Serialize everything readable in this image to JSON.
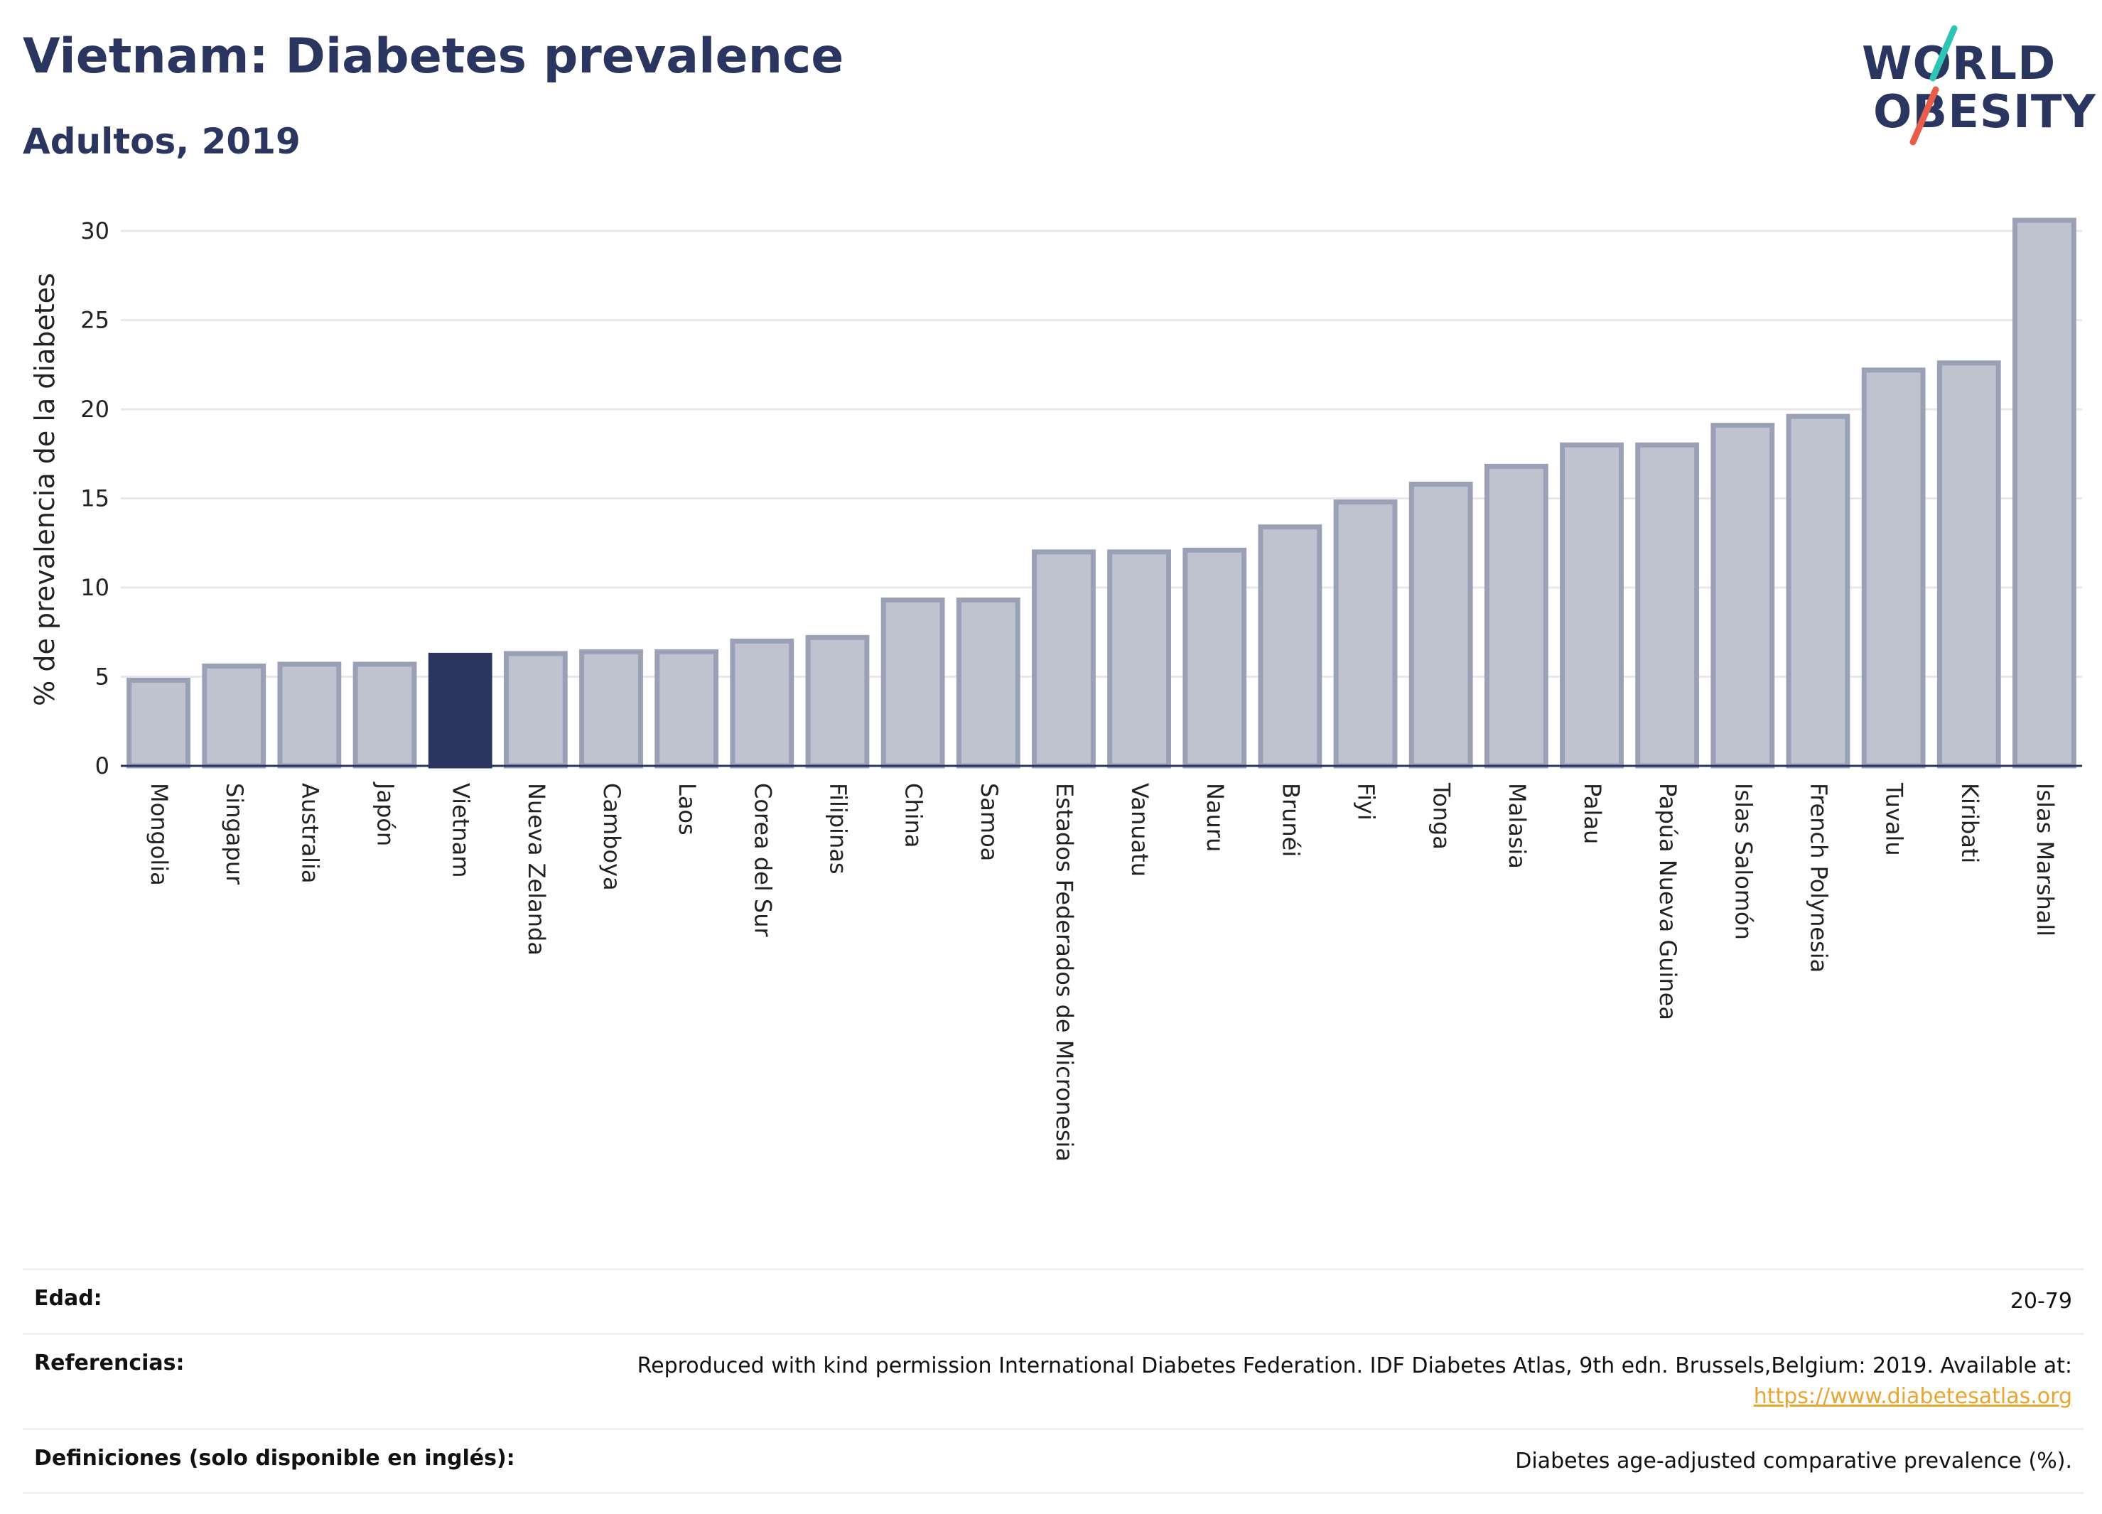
{
  "header": {
    "title": "Vietnam: Diabetes prevalence",
    "subtitle": "Adultos, 2019"
  },
  "logo": {
    "line1": "WORLD",
    "line2": "OBESITY",
    "slash_colors": [
      "#2ec4b6",
      "#e85d4a"
    ]
  },
  "colors": {
    "bar": "#bfc3d0",
    "bar_border": "#9aa0b6",
    "highlight": "#2b3660",
    "grid": "#e6e8ee",
    "axis": "#2b3660",
    "text_dark": "#2b3660",
    "link": "#e8a530"
  },
  "chart_data": {
    "type": "bar",
    "ylabel": "% de prevalencia de la diabetes",
    "xlabel": "",
    "ylim": [
      0,
      31
    ],
    "yticks": [
      0,
      5,
      10,
      15,
      20,
      25,
      30
    ],
    "grid": true,
    "highlight": "Vietnam",
    "categories": [
      "Mongolia",
      "Singapur",
      "Australia",
      "Japón",
      "Vietnam",
      "Nueva Zelanda",
      "Camboya",
      "Laos",
      "Corea del Sur",
      "Filipinas",
      "China",
      "Samoa",
      "Estados Federados de Micronesia",
      "Vanuatu",
      "Nauru",
      "Brunéi",
      "Fiyi",
      "Tonga",
      "Malasia",
      "Palau",
      "Papúa Nueva Guinea",
      "Islas Salomón",
      "French Polynesia",
      "Tuvalu",
      "Kiribati",
      "Islas Marshall"
    ],
    "values": [
      4.8,
      5.6,
      5.7,
      5.7,
      6.2,
      6.3,
      6.4,
      6.4,
      7.0,
      7.2,
      9.3,
      9.3,
      12.0,
      12.0,
      12.1,
      13.4,
      14.8,
      15.8,
      16.8,
      18.0,
      18.0,
      19.1,
      19.6,
      22.2,
      22.6,
      30.6
    ]
  },
  "info": {
    "rows": [
      {
        "label": "Edad:",
        "value": "20-79"
      },
      {
        "label": "Referencias:",
        "value": "Reproduced with kind permission International Diabetes Federation. IDF Diabetes Atlas, 9th edn. Brussels,Belgium: 2019. Available at:",
        "link": "https://www.diabetesatlas.org"
      },
      {
        "label": "Definiciones (solo disponible en inglés):",
        "value": "Diabetes age-adjusted comparative prevalence (%)."
      }
    ]
  }
}
